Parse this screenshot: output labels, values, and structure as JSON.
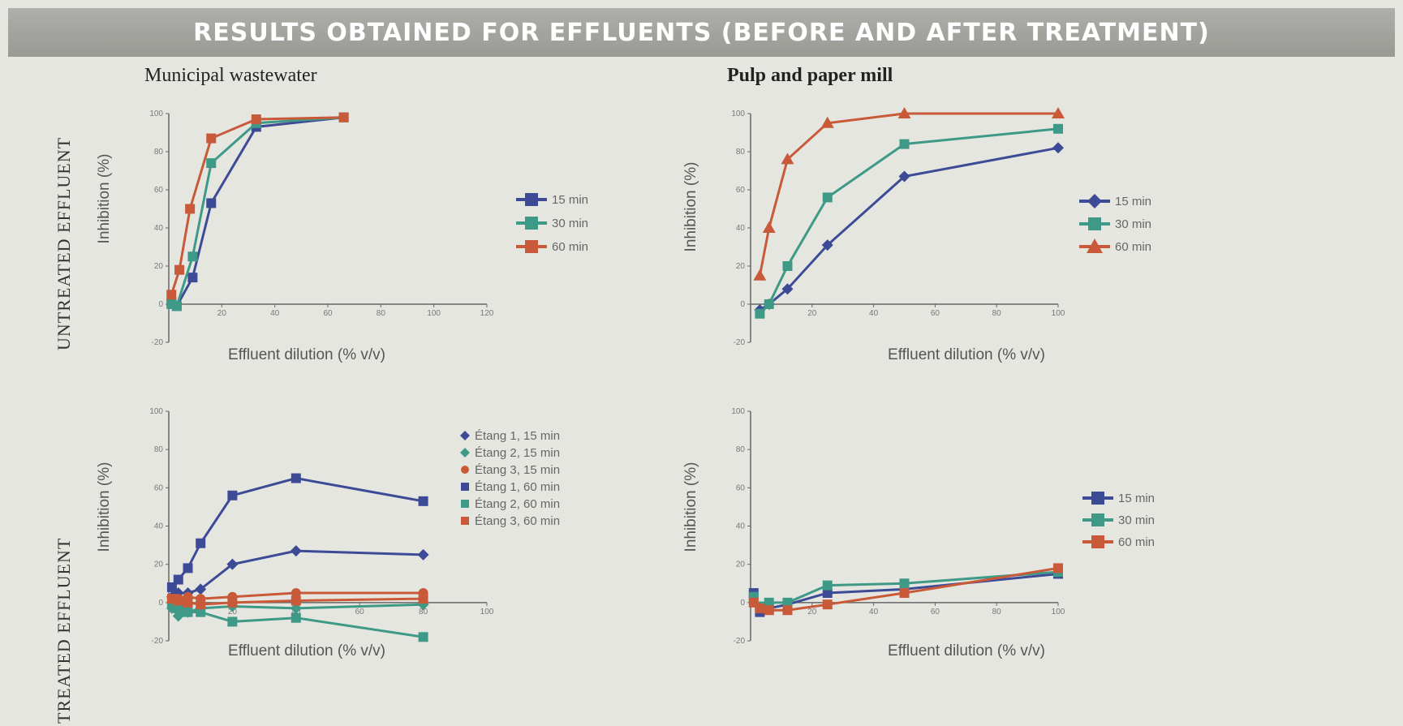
{
  "banner": {
    "title": "RESULTS OBTAINED FOR EFFLUENTS (BEFORE AND AFTER TREATMENT)"
  },
  "columns": {
    "left": "Municipal wastewater",
    "right": "Pulp and paper mill"
  },
  "rows": {
    "top": "UNTREATED EFFLUENT",
    "bottom": "TREATED EFFLUENT"
  },
  "colors": {
    "blue": "#3d4b96",
    "teal": "#3e9a86",
    "red": "#c85a3a",
    "banner": "#a5a5a0",
    "background": "#e6e6e1"
  },
  "chart_data": [
    {
      "id": "untreated-municipal",
      "type": "line",
      "xlabel": "Effluent dilution (% v/v)",
      "ylabel": "Inhibition (%)",
      "xlim": [
        0,
        120
      ],
      "ylim": [
        -20,
        100
      ],
      "xticks": [
        0,
        20,
        40,
        60,
        80,
        100,
        120
      ],
      "yticks": [
        -20,
        0,
        20,
        40,
        60,
        80,
        100
      ],
      "legend_position": "right",
      "series": [
        {
          "name": "15 min",
          "color": "#3d4b96",
          "marker": "square",
          "x": [
            1,
            3,
            9,
            16,
            33,
            66
          ],
          "y": [
            1,
            -1,
            14,
            53,
            93,
            98
          ]
        },
        {
          "name": "30 min",
          "color": "#3e9a86",
          "marker": "square",
          "x": [
            1,
            3,
            9,
            16,
            33,
            66
          ],
          "y": [
            0,
            -1,
            25,
            74,
            95,
            98
          ]
        },
        {
          "name": "60 min",
          "color": "#c85a3a",
          "marker": "square",
          "x": [
            1,
            4,
            8,
            16,
            33,
            66
          ],
          "y": [
            5,
            18,
            50,
            87,
            97,
            98
          ]
        }
      ]
    },
    {
      "id": "untreated-pulp",
      "type": "line",
      "xlabel": "Effluent dilution (% v/v)",
      "ylabel": "Inhibition (%)",
      "xlim": [
        0,
        100
      ],
      "ylim": [
        -20,
        100
      ],
      "xticks": [
        0,
        20,
        40,
        60,
        80,
        100
      ],
      "yticks": [
        -20,
        0,
        20,
        40,
        60,
        80,
        100
      ],
      "legend_position": "right",
      "series": [
        {
          "name": "15 min",
          "color": "#3d4b96",
          "marker": "diamond",
          "x": [
            3,
            6,
            12,
            25,
            50,
            100
          ],
          "y": [
            -3,
            0,
            8,
            31,
            67,
            82
          ]
        },
        {
          "name": "30 min",
          "color": "#3e9a86",
          "marker": "square",
          "x": [
            3,
            6,
            12,
            25,
            50,
            100
          ],
          "y": [
            -5,
            0,
            20,
            56,
            84,
            92
          ]
        },
        {
          "name": "60 min",
          "color": "#c85a3a",
          "marker": "triangle",
          "x": [
            3,
            6,
            12,
            25,
            50,
            100
          ],
          "y": [
            15,
            40,
            76,
            95,
            100,
            100
          ]
        }
      ]
    },
    {
      "id": "treated-municipal",
      "type": "line",
      "xlabel": "Effluent dilution (% v/v)",
      "ylabel": "Inhibition (%)",
      "xlim": [
        0,
        100
      ],
      "ylim": [
        -20,
        100
      ],
      "xticks": [
        0,
        20,
        40,
        60,
        80,
        100
      ],
      "yticks": [
        -20,
        0,
        20,
        40,
        60,
        80,
        100
      ],
      "legend_position": "top-right",
      "series": [
        {
          "name": "Étang 1, 15 min",
          "color": "#3d4b96",
          "marker": "diamond",
          "x": [
            1,
            3,
            6,
            10,
            20,
            40,
            80
          ],
          "y": [
            3,
            5,
            5,
            7,
            20,
            27,
            25
          ]
        },
        {
          "name": "Étang 2, 15 min",
          "color": "#3e9a86",
          "marker": "diamond",
          "x": [
            1,
            3,
            6,
            10,
            20,
            40,
            80
          ],
          "y": [
            -3,
            -7,
            -5,
            -3,
            -2,
            -3,
            -1
          ]
        },
        {
          "name": "Étang 3, 15 min",
          "color": "#c85a3a",
          "marker": "circle",
          "x": [
            1,
            3,
            6,
            10,
            20,
            40,
            80
          ],
          "y": [
            1,
            2,
            3,
            2,
            3,
            5,
            5
          ]
        },
        {
          "name": "Étang 1, 60 min",
          "color": "#3d4b96",
          "marker": "square",
          "x": [
            1,
            3,
            6,
            10,
            20,
            40,
            80
          ],
          "y": [
            8,
            12,
            18,
            31,
            56,
            65,
            53
          ]
        },
        {
          "name": "Étang 2, 60 min",
          "color": "#3e9a86",
          "marker": "square",
          "x": [
            1,
            3,
            6,
            10,
            20,
            40,
            80
          ],
          "y": [
            0,
            -3,
            -5,
            -5,
            -10,
            -8,
            -18
          ]
        },
        {
          "name": "Étang 3, 60 min",
          "color": "#c85a3a",
          "marker": "square",
          "x": [
            1,
            3,
            6,
            10,
            20,
            40,
            80
          ],
          "y": [
            2,
            1,
            0,
            -1,
            0,
            1,
            2
          ]
        }
      ]
    },
    {
      "id": "treated-pulp",
      "type": "line",
      "xlabel": "Effluent dilution (% v/v)",
      "ylabel": "Inhibition (%)",
      "xlim": [
        0,
        100
      ],
      "ylim": [
        -20,
        100
      ],
      "xticks": [
        0,
        20,
        40,
        60,
        80,
        100
      ],
      "yticks": [
        -20,
        0,
        20,
        40,
        60,
        80,
        100
      ],
      "legend_position": "right",
      "series": [
        {
          "name": "15 min",
          "color": "#3d4b96",
          "marker": "square",
          "x": [
            1,
            3,
            6,
            12,
            25,
            50,
            100
          ],
          "y": [
            5,
            -5,
            -3,
            -1,
            5,
            7,
            15
          ]
        },
        {
          "name": "30 min",
          "color": "#3e9a86",
          "marker": "square",
          "x": [
            1,
            3,
            6,
            12,
            25,
            50,
            100
          ],
          "y": [
            3,
            -2,
            0,
            0,
            9,
            10,
            16
          ]
        },
        {
          "name": "60 min",
          "color": "#c85a3a",
          "marker": "square",
          "x": [
            1,
            3,
            6,
            12,
            25,
            50,
            100
          ],
          "y": [
            0,
            -3,
            -4,
            -4,
            -1,
            5,
            18
          ]
        }
      ]
    }
  ]
}
